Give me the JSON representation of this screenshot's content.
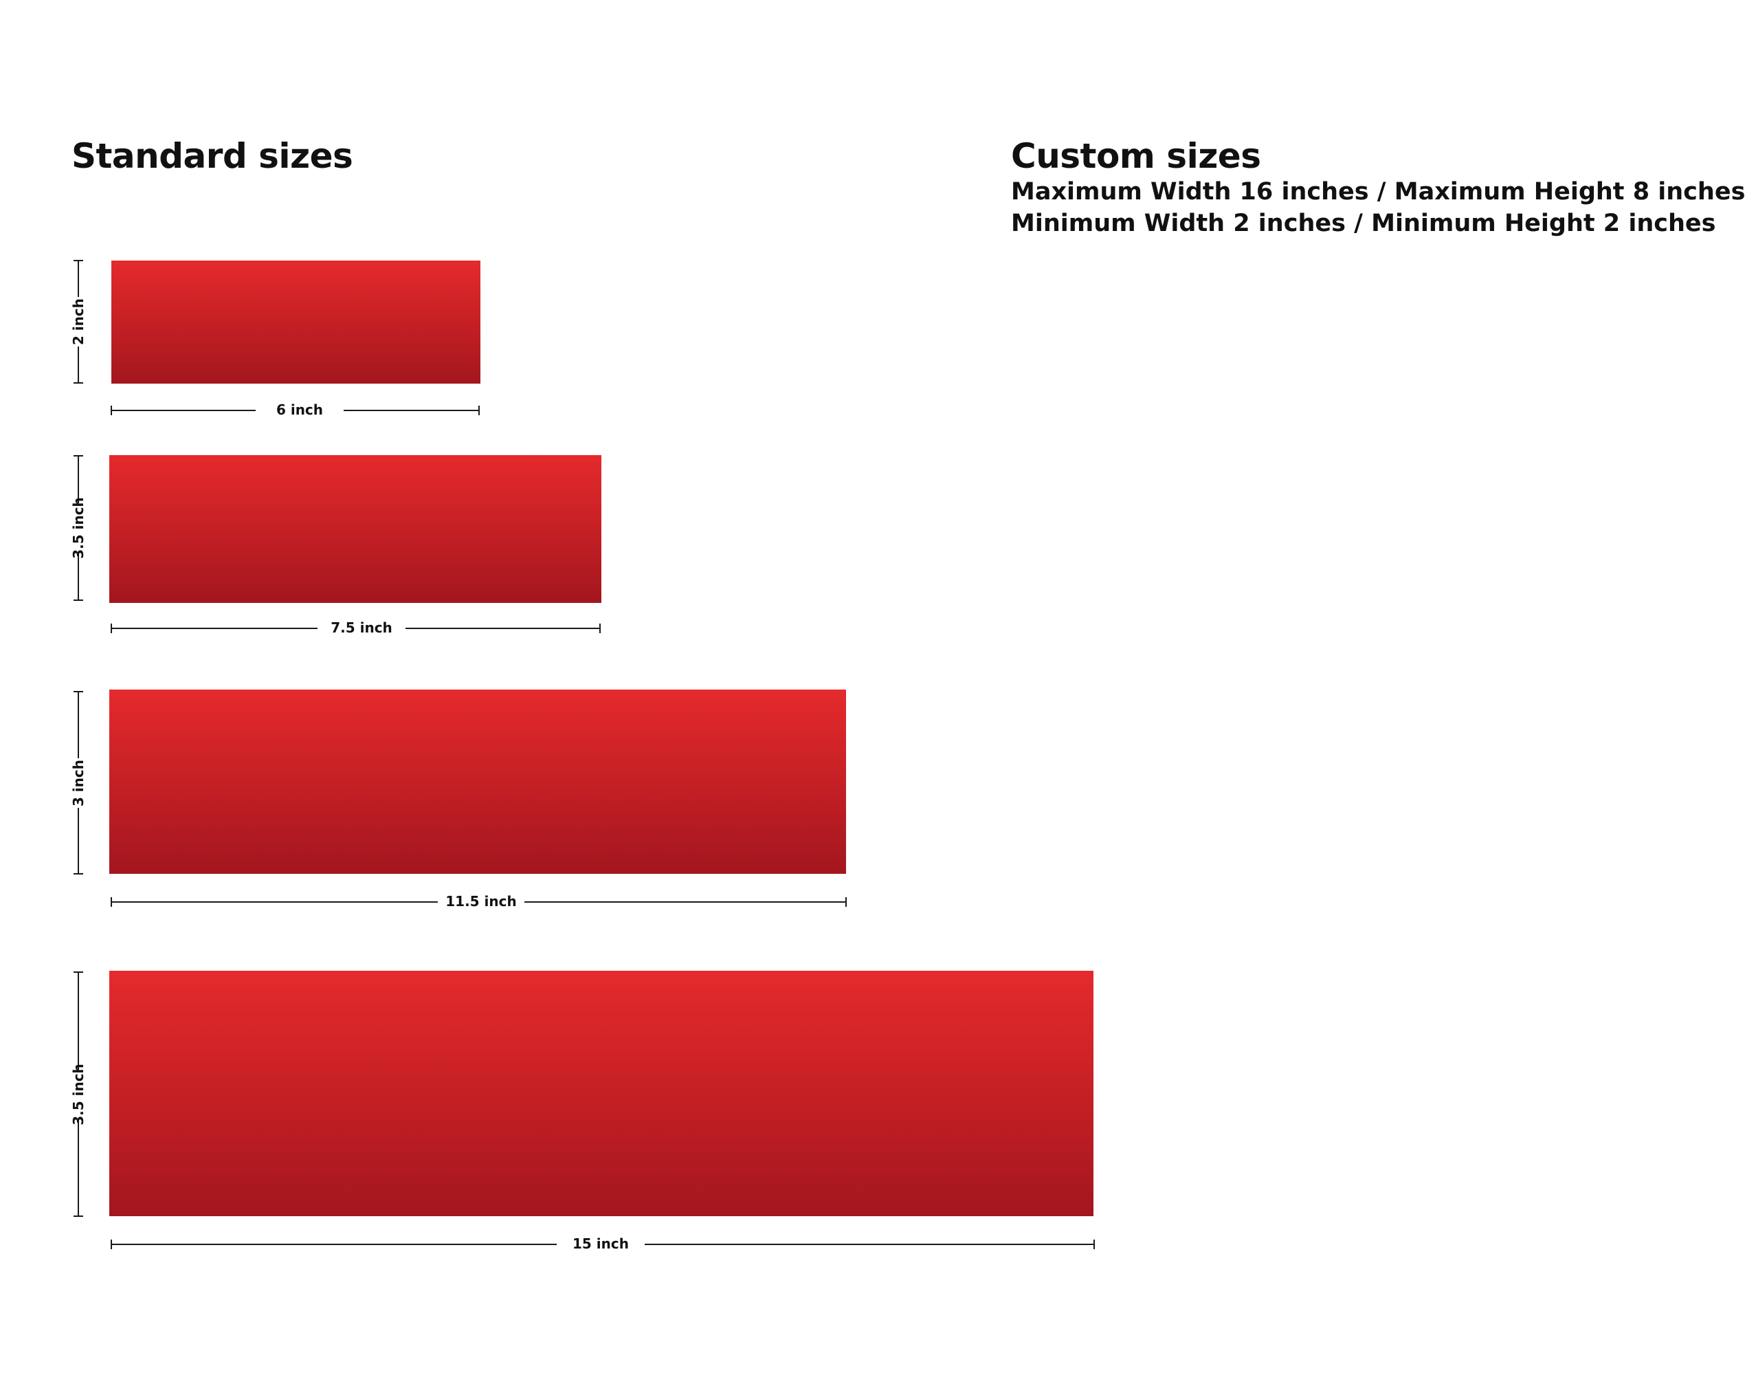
{
  "standard": {
    "title": "Standard sizes",
    "sizes": [
      {
        "width": "6 inch",
        "height": "2 inch"
      },
      {
        "width": "7.5 inch",
        "height": "3.5 inch"
      },
      {
        "width": "11.5 inch",
        "height": "3 inch"
      },
      {
        "width": "15 inch",
        "height": "3.5 inch"
      }
    ]
  },
  "custom": {
    "title": "Custom sizes",
    "max_line": "Maximum Width 16 inches / Maximum Height 8 inches",
    "min_line": "Minimum Width 2 inches / Minimum Height 2 inches"
  },
  "colors": {
    "rect_top": "#e52a2c",
    "rect_bottom": "#a3161e",
    "line": "#1a1a1a"
  }
}
